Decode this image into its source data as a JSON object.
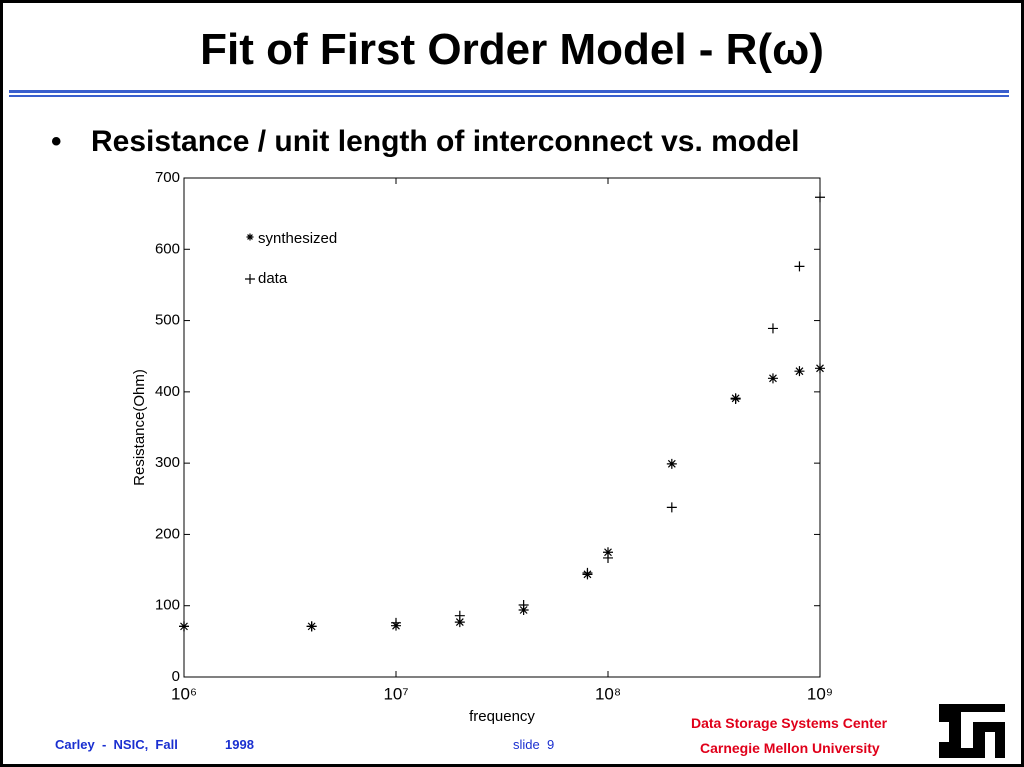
{
  "slide": {
    "title": "Fit of First Order Model - R(ω)",
    "bullet": "Resistance / unit length of interconnect vs. model",
    "footer_left": "Carley  -  NSIC,  Fall",
    "footer_year": "1998",
    "slide_number": "slide  9",
    "org_line1": "Data Storage Systems Center",
    "org_line2": "Carnegie Mellon University"
  },
  "chart_data": {
    "type": "scatter",
    "xlabel": "frequency",
    "ylabel": "Resistance(Ohm)",
    "xscale": "log",
    "x": [
      1000000,
      4000000,
      10000000,
      20000000,
      40000000,
      80000000,
      100000000,
      200000000,
      400000000,
      600000000,
      800000000,
      1000000000
    ],
    "series": [
      {
        "name": "synthesized",
        "marker": "star",
        "color": "#000000",
        "values": [
          71,
          71,
          72,
          77,
          94,
          144,
          175,
          299,
          391,
          419,
          429,
          433
        ]
      },
      {
        "name": "data",
        "marker": "plus",
        "color": "#000000",
        "values": [
          71,
          71,
          76,
          86,
          101,
          146,
          167,
          238,
          390,
          489,
          576,
          673
        ]
      }
    ],
    "xlim": [
      1000000,
      1000000000
    ],
    "xticks": [
      {
        "value": 1000000,
        "label": "10⁶"
      },
      {
        "value": 10000000,
        "label": "10⁷"
      },
      {
        "value": 100000000,
        "label": "10⁸"
      },
      {
        "value": 1000000000,
        "label": "10⁹"
      }
    ],
    "ylim": [
      0,
      700
    ],
    "yticks": [
      0,
      100,
      200,
      300,
      400,
      500,
      600,
      700
    ],
    "grid": false
  }
}
